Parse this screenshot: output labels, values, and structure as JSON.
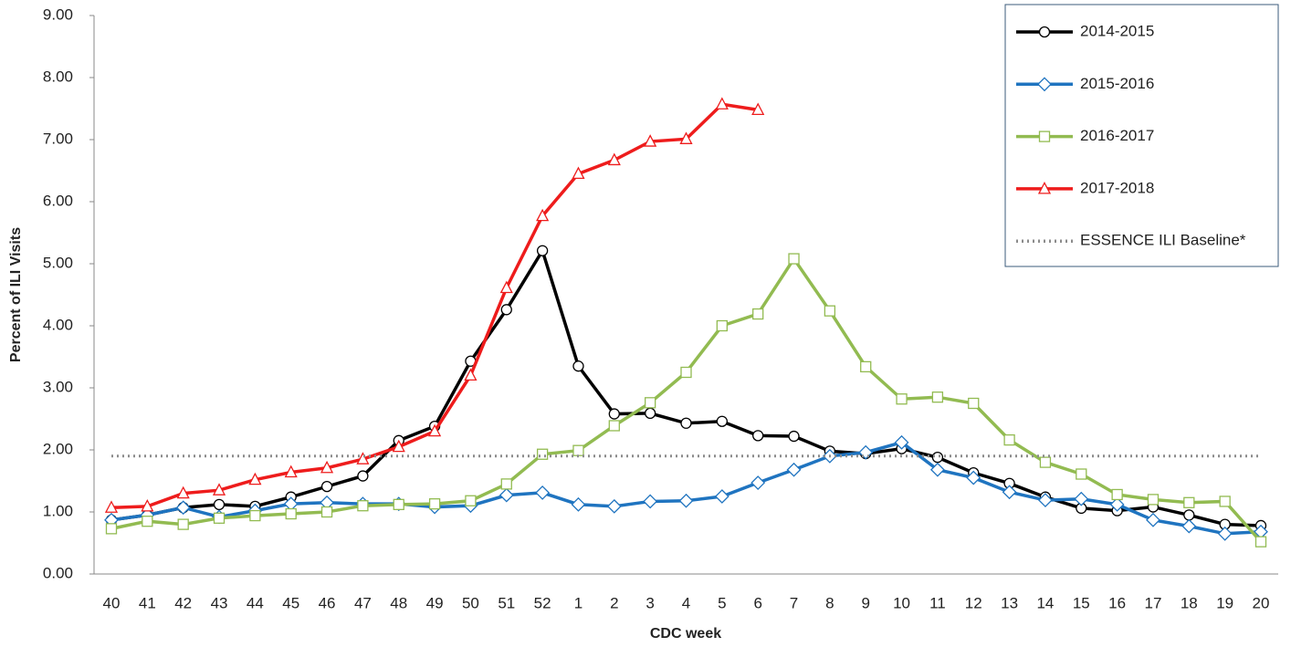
{
  "chart_data": {
    "type": "line",
    "x_label": "CDC week",
    "y_label": "Percent of ILI Visits",
    "categories": [
      "40",
      "41",
      "42",
      "43",
      "44",
      "45",
      "46",
      "47",
      "48",
      "49",
      "50",
      "51",
      "52",
      "1",
      "2",
      "3",
      "4",
      "5",
      "6",
      "7",
      "8",
      "9",
      "10",
      "11",
      "12",
      "13",
      "14",
      "15",
      "16",
      "17",
      "18",
      "19",
      "20"
    ],
    "ylim": [
      0,
      9
    ],
    "yticks": [
      {
        "value": 0,
        "label": "0.00"
      },
      {
        "value": 1,
        "label": "1.00"
      },
      {
        "value": 2,
        "label": "2.00"
      },
      {
        "value": 3,
        "label": "3.00"
      },
      {
        "value": 4,
        "label": "4.00"
      },
      {
        "value": 5,
        "label": "5.00"
      },
      {
        "value": 6,
        "label": "6.00"
      },
      {
        "value": 7,
        "label": "7.00"
      },
      {
        "value": 8,
        "label": "8.00"
      },
      {
        "value": 9,
        "label": "9.00"
      }
    ],
    "legend": "upper right",
    "series": [
      {
        "name": "2014-2015",
        "color": "#000000",
        "marker": "circle",
        "values": [
          0.87,
          0.95,
          1.07,
          1.12,
          1.09,
          1.24,
          1.41,
          1.58,
          2.15,
          2.38,
          3.43,
          4.26,
          5.21,
          3.35,
          2.58,
          2.59,
          2.43,
          2.46,
          2.23,
          2.22,
          1.98,
          1.94,
          2.02,
          1.88,
          1.63,
          1.46,
          1.24,
          1.06,
          1.02,
          1.08,
          0.95,
          0.8,
          0.78
        ]
      },
      {
        "name": "2015-2016",
        "color": "#1f74c0",
        "marker": "diamond",
        "values": [
          0.87,
          0.95,
          1.07,
          0.92,
          1.02,
          1.13,
          1.15,
          1.13,
          1.13,
          1.08,
          1.1,
          1.27,
          1.31,
          1.12,
          1.09,
          1.17,
          1.18,
          1.25,
          1.47,
          1.68,
          1.9,
          1.96,
          2.12,
          1.68,
          1.55,
          1.32,
          1.19,
          1.21,
          1.12,
          0.87,
          0.77,
          0.65,
          0.68
        ]
      },
      {
        "name": "2016-2017",
        "color": "#92bb51",
        "marker": "square",
        "values": [
          0.73,
          0.85,
          0.8,
          0.9,
          0.94,
          0.97,
          1.0,
          1.1,
          1.12,
          1.13,
          1.18,
          1.45,
          1.93,
          1.99,
          2.39,
          2.76,
          3.25,
          4.0,
          4.19,
          5.08,
          4.24,
          3.34,
          2.82,
          2.85,
          2.75,
          2.16,
          1.8,
          1.61,
          1.28,
          1.2,
          1.15,
          1.17,
          0.52
        ]
      },
      {
        "name": "2017-2018",
        "color": "#ee1c1c",
        "marker": "triangle",
        "values": [
          1.07,
          1.09,
          1.3,
          1.35,
          1.52,
          1.64,
          1.71,
          1.85,
          2.05,
          2.3,
          3.2,
          4.61,
          5.77,
          6.45,
          6.67,
          6.97,
          7.01,
          7.57,
          7.48,
          null,
          null,
          null,
          null,
          null,
          null,
          null,
          null,
          null,
          null,
          null,
          null,
          null,
          null
        ]
      },
      {
        "name": "ESSENCE ILI Baseline*",
        "color": "#8c8c8c",
        "style": "dotted",
        "values": [
          1.9,
          1.9,
          1.9,
          1.9,
          1.9,
          1.9,
          1.9,
          1.9,
          1.9,
          1.9,
          1.9,
          1.9,
          1.9,
          1.9,
          1.9,
          1.9,
          1.9,
          1.9,
          1.9,
          1.9,
          1.9,
          1.9,
          1.9,
          1.9,
          1.9,
          1.9,
          1.9,
          1.9,
          1.9,
          1.9,
          1.9,
          1.9,
          1.9
        ]
      }
    ]
  }
}
